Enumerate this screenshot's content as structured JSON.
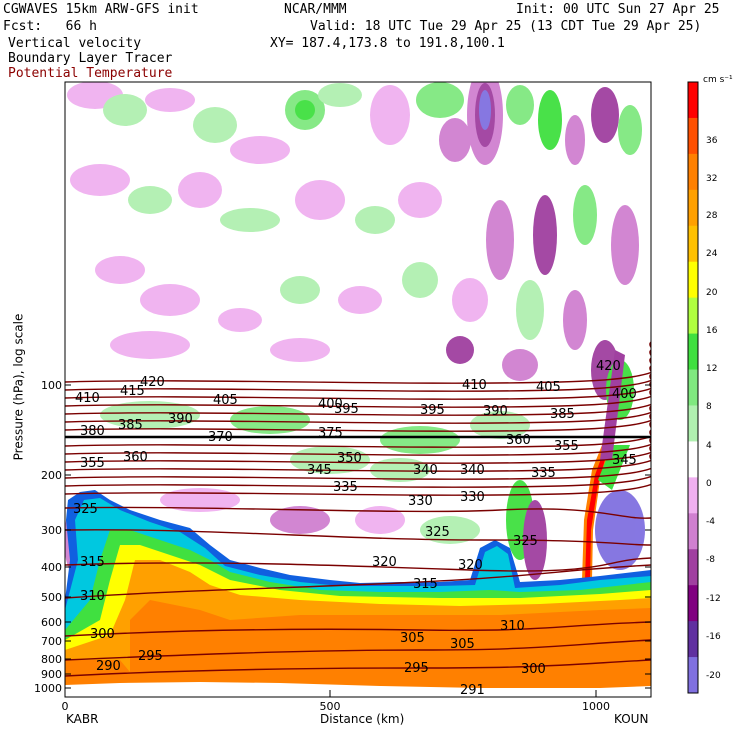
{
  "header": {
    "model_title": "CGWAVES 15km ARW-GFS init",
    "source": "NCAR/MMM",
    "init_time": "Init: 00 UTC Sun 27 Apr 25",
    "forecast_hour": "Fcst:   66 h",
    "valid_time": "Valid: 18 UTC Tue 29 Apr 25 (13 CDT Tue 29 Apr 25)",
    "field_1": "Vertical velocity",
    "field_2": "Boundary Layer Tracer",
    "field_3": "Potential Temperature",
    "cross_section": "XY= 187.4,173.8 to 191.8,100.1"
  },
  "axes": {
    "y_label": "Pressure (hPa), log scale",
    "x_label": "Distance (km)",
    "y_ticks": [
      "100",
      "200",
      "300",
      "400",
      "500",
      "600",
      "700",
      "800",
      "900",
      "1000"
    ],
    "x_ticks": [
      "0",
      "500",
      "1000"
    ],
    "left_station": "KABR",
    "right_station": "KOUN"
  },
  "colorbar": {
    "unit": "cm s⁻¹",
    "labels": [
      "36",
      "32",
      "28",
      "24",
      "20",
      "16",
      "12",
      "8",
      "4",
      "0",
      "-4",
      "-8",
      "-12",
      "-16",
      "-20"
    ],
    "colors": [
      "#ff0000",
      "#ff5000",
      "#ff8000",
      "#ffa000",
      "#ffc000",
      "#ffff00",
      "#b0ff40",
      "#40e040",
      "#80e880",
      "#b0f0b0",
      "#ffffff",
      "#f0b0f0",
      "#d080d0",
      "#a040a0",
      "#800080",
      "#6030a0",
      "#8070e0"
    ]
  },
  "theta_labels": [
    "420",
    "415",
    "410",
    "405",
    "400",
    "395",
    "390",
    "385",
    "380",
    "375",
    "370",
    "360",
    "355",
    "350",
    "345",
    "340",
    "335",
    "330",
    "325",
    "320",
    "315",
    "310",
    "305",
    "300",
    "295",
    "290",
    "291"
  ]
}
